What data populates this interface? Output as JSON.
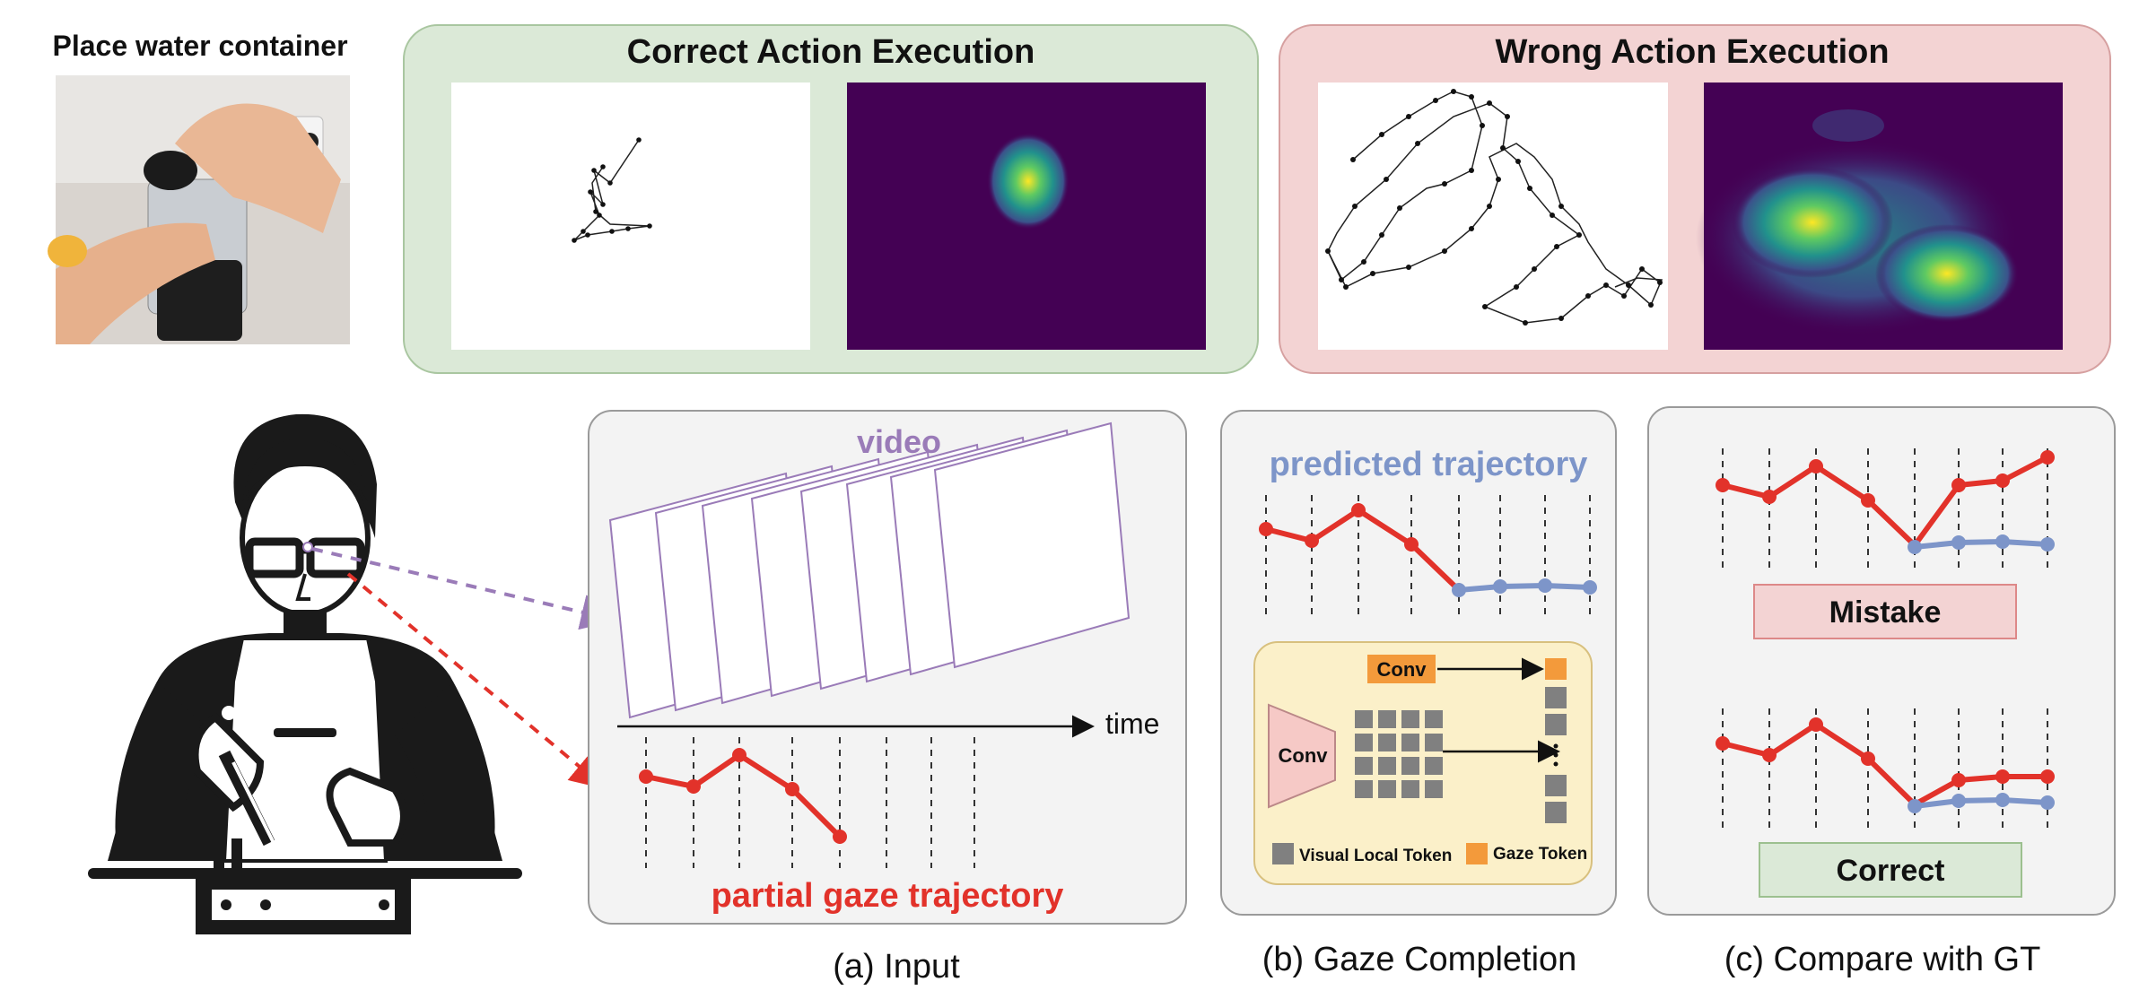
{
  "top": {
    "task_label": "Place water container",
    "correct_title": "Correct Action Execution",
    "wrong_title": "Wrong Action Execution"
  },
  "input_panel": {
    "video_label": "video",
    "time_label": "time",
    "trajectory_label": "partial gaze trajectory",
    "caption": "(a) Input"
  },
  "completion_panel": {
    "predicted_label": "predicted trajectory",
    "conv_small_label": "Conv",
    "conv_big_label": "Conv",
    "legend_visual": "Visual Local Token",
    "legend_gaze": "Gaze Token",
    "caption": "(b) Gaze Completion"
  },
  "compare_panel": {
    "mistake_label": "Mistake",
    "correct_label": "Correct",
    "caption": "(c) Compare with GT"
  },
  "colors": {
    "green_panel": "#dbe9d7",
    "red_panel": "#f3d3d3",
    "grey_panel": "#f3f3f3",
    "red_line": "#e2322a",
    "blue_line": "#7d95c9",
    "purple": "#9a7bb8",
    "orange": "#f39a3b",
    "token_grey": "#808080",
    "model_bg": "#fbf0c9",
    "viridis_dark": "#440154",
    "viridis_yellow": "#fde725"
  }
}
